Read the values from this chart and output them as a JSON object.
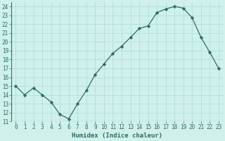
{
  "x": [
    0,
    1,
    2,
    3,
    4,
    5,
    6,
    7,
    8,
    9,
    10,
    11,
    12,
    13,
    14,
    15,
    16,
    17,
    18,
    19,
    20,
    21,
    22,
    23
  ],
  "y": [
    15.0,
    14.0,
    14.8,
    14.0,
    13.2,
    11.8,
    11.3,
    13.0,
    14.5,
    16.3,
    17.5,
    18.7,
    19.5,
    20.5,
    21.5,
    21.8,
    23.3,
    23.7,
    24.0,
    23.8,
    22.7,
    20.5,
    18.8,
    17.0
  ],
  "line_color": "#2d6e5e",
  "marker": "D",
  "marker_size": 1.8,
  "line_width": 0.9,
  "bg_color": "#cff0eb",
  "grid_color": "#aaddd8",
  "xlabel": "Humidex (Indice chaleur)",
  "xlabel_fontsize": 6.5,
  "tick_fontsize": 5.5,
  "ylim": [
    11,
    24.5
  ],
  "yticks": [
    11,
    12,
    13,
    14,
    15,
    16,
    17,
    18,
    19,
    20,
    21,
    22,
    23,
    24
  ],
  "xticks": [
    0,
    1,
    2,
    3,
    4,
    5,
    6,
    7,
    8,
    9,
    10,
    11,
    12,
    13,
    14,
    15,
    16,
    17,
    18,
    19,
    20,
    21,
    22,
    23
  ]
}
